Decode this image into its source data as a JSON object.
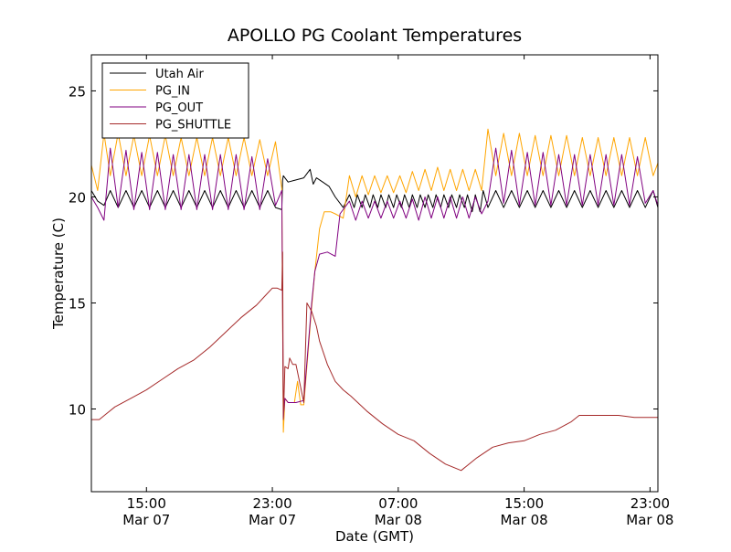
{
  "chart_data": {
    "type": "line",
    "title": "APOLLO PG Coolant Temperatures",
    "xlabel": "Date (GMT)",
    "ylabel": "Temperature (C)",
    "x_units": "hours since 2014-03-07 00:00 GMT",
    "xlim": [
      11.5,
      47.5
    ],
    "ylim": [
      6.1,
      26.7
    ],
    "yticks": [
      10,
      15,
      20,
      25
    ],
    "xticks": [
      {
        "x": 15,
        "line1": "15:00",
        "line2": "Mar 07"
      },
      {
        "x": 23,
        "line1": "23:00",
        "line2": "Mar 07"
      },
      {
        "x": 31,
        "line1": "07:00",
        "line2": "Mar 08"
      },
      {
        "x": 39,
        "line1": "15:00",
        "line2": "Mar 08"
      },
      {
        "x": 47,
        "line1": "23:00",
        "line2": "Mar 08"
      }
    ],
    "legend_position": "top-left",
    "series": [
      {
        "name": "Utah Air",
        "color": "#000000",
        "x": [
          11.5,
          11.9,
          12.3,
          12.7,
          13.2,
          13.7,
          14.2,
          14.7,
          15.2,
          15.7,
          16.2,
          16.7,
          17.2,
          17.7,
          18.2,
          18.7,
          19.2,
          19.7,
          20.2,
          20.7,
          21.2,
          21.7,
          22.2,
          22.7,
          23.2,
          23.6,
          23.65,
          23.7,
          24.0,
          24.5,
          25.0,
          25.4,
          25.6,
          25.8,
          26.2,
          26.6,
          27.0,
          27.5,
          27.9,
          28.2,
          28.4,
          28.7,
          28.9,
          29.2,
          29.4,
          29.7,
          29.9,
          30.2,
          30.4,
          30.7,
          30.9,
          31.2,
          31.4,
          31.7,
          31.9,
          32.2,
          32.4,
          32.7,
          32.9,
          33.2,
          33.4,
          33.7,
          33.9,
          34.2,
          34.4,
          34.7,
          34.9,
          35.2,
          35.4,
          35.7,
          35.9,
          36.2,
          36.4,
          36.7,
          37.2,
          37.7,
          38.2,
          38.7,
          39.2,
          39.7,
          40.2,
          40.7,
          41.2,
          41.7,
          42.2,
          42.7,
          43.2,
          43.7,
          44.2,
          44.7,
          45.2,
          45.7,
          46.2,
          46.7,
          47.2,
          47.5
        ],
        "y": [
          20.3,
          19.8,
          19.6,
          20.3,
          19.5,
          20.3,
          19.5,
          20.3,
          19.5,
          20.3,
          19.5,
          20.3,
          19.5,
          20.3,
          19.5,
          20.3,
          19.5,
          20.3,
          19.5,
          20.3,
          19.5,
          20.3,
          19.5,
          20.3,
          19.5,
          19.4,
          20.8,
          21.0,
          20.7,
          20.8,
          20.9,
          21.3,
          20.6,
          20.9,
          20.7,
          20.5,
          20.0,
          19.5,
          20.1,
          19.5,
          20.1,
          19.5,
          20.1,
          19.5,
          20.1,
          19.5,
          20.1,
          19.5,
          20.1,
          19.5,
          20.1,
          19.5,
          20.1,
          19.5,
          20.1,
          19.5,
          20.1,
          19.5,
          20.1,
          19.5,
          20.1,
          19.5,
          20.1,
          19.5,
          20.1,
          19.5,
          20.1,
          19.5,
          20.1,
          19.3,
          20.1,
          19.3,
          20.3,
          19.5,
          20.3,
          19.5,
          20.3,
          19.5,
          20.3,
          19.5,
          20.3,
          19.5,
          20.3,
          19.5,
          20.3,
          19.5,
          20.3,
          19.5,
          20.3,
          19.5,
          20.3,
          19.5,
          20.3,
          19.5,
          20.3,
          19.5
        ]
      },
      {
        "name": "PG_IN",
        "color": "#ffa500",
        "x": [
          11.5,
          11.9,
          12.3,
          12.7,
          13.2,
          13.7,
          14.2,
          14.7,
          15.2,
          15.7,
          16.2,
          16.7,
          17.2,
          17.7,
          18.2,
          18.7,
          19.2,
          19.7,
          20.2,
          20.7,
          21.2,
          21.7,
          22.2,
          22.7,
          23.2,
          23.6,
          23.7,
          23.8,
          24.0,
          24.4,
          24.6,
          24.8,
          25.0,
          25.5,
          25.7,
          26.0,
          26.3,
          26.7,
          27.0,
          27.5,
          27.9,
          28.3,
          28.7,
          29.1,
          29.5,
          29.9,
          30.3,
          30.7,
          31.1,
          31.5,
          31.9,
          32.3,
          32.7,
          33.1,
          33.5,
          33.9,
          34.3,
          34.7,
          35.1,
          35.5,
          35.9,
          36.3,
          36.7,
          37.2,
          37.7,
          38.2,
          38.7,
          39.2,
          39.7,
          40.2,
          40.7,
          41.2,
          41.7,
          42.2,
          42.7,
          43.2,
          43.7,
          44.2,
          44.7,
          45.2,
          45.7,
          46.2,
          46.7,
          47.2,
          47.5
        ],
        "y": [
          21.5,
          20.3,
          23.0,
          21.0,
          23.0,
          21.0,
          22.9,
          21.0,
          22.9,
          21.0,
          22.9,
          21.0,
          22.8,
          21.0,
          22.8,
          21.0,
          22.8,
          21.0,
          22.8,
          21.0,
          22.8,
          21.0,
          22.7,
          21.0,
          22.6,
          20.4,
          8.9,
          10.5,
          10.3,
          10.3,
          11.3,
          10.2,
          10.2,
          14.8,
          16.5,
          18.5,
          19.3,
          19.3,
          19.2,
          19.0,
          21.0,
          20.0,
          21.0,
          20.1,
          21.0,
          20.2,
          21.0,
          20.2,
          21.0,
          20.2,
          21.2,
          20.3,
          21.3,
          20.3,
          21.4,
          20.3,
          21.3,
          20.3,
          21.3,
          20.3,
          21.3,
          20.3,
          23.2,
          21.0,
          23.0,
          21.0,
          23.0,
          21.0,
          22.9,
          21.0,
          22.9,
          21.0,
          22.9,
          21.0,
          22.8,
          21.0,
          22.8,
          21.0,
          22.8,
          21.0,
          22.8,
          21.0,
          22.8,
          21.0,
          21.6
        ]
      },
      {
        "name": "PG_OUT",
        "color": "#800080",
        "x": [
          11.5,
          11.9,
          12.3,
          12.7,
          13.2,
          13.7,
          14.2,
          14.7,
          15.2,
          15.7,
          16.2,
          16.7,
          17.2,
          17.7,
          18.2,
          18.7,
          19.2,
          19.7,
          20.2,
          20.7,
          21.2,
          21.7,
          22.2,
          22.7,
          23.2,
          23.6,
          23.7,
          23.8,
          24.0,
          24.5,
          25.0,
          25.5,
          25.7,
          26.0,
          26.5,
          27.0,
          27.3,
          27.9,
          28.3,
          28.7,
          29.1,
          29.5,
          29.9,
          30.3,
          30.7,
          31.1,
          31.5,
          31.9,
          32.3,
          32.7,
          33.1,
          33.5,
          33.9,
          34.3,
          34.7,
          35.1,
          35.5,
          35.9,
          36.3,
          36.7,
          37.2,
          37.7,
          38.2,
          38.7,
          39.2,
          39.7,
          40.2,
          40.7,
          41.2,
          41.7,
          42.2,
          42.7,
          43.2,
          43.7,
          44.2,
          44.7,
          45.2,
          45.7,
          46.2,
          46.7,
          47.2,
          47.5
        ],
        "y": [
          20.0,
          19.5,
          18.9,
          22.3,
          19.5,
          22.2,
          19.4,
          22.1,
          19.4,
          22.1,
          19.4,
          22.0,
          19.4,
          22.0,
          19.4,
          22.0,
          19.4,
          22.0,
          19.4,
          22.0,
          19.4,
          21.9,
          19.4,
          21.8,
          19.6,
          20.3,
          9.6,
          10.5,
          10.3,
          10.3,
          10.4,
          15.0,
          16.5,
          17.3,
          17.4,
          17.2,
          19.2,
          19.8,
          18.9,
          19.8,
          19.0,
          19.8,
          19.0,
          19.8,
          19.0,
          19.8,
          19.0,
          19.9,
          18.9,
          20.0,
          19.0,
          20.0,
          19.0,
          20.0,
          19.0,
          20.0,
          19.0,
          20.0,
          19.2,
          19.8,
          22.3,
          19.7,
          22.2,
          19.6,
          22.1,
          19.6,
          22.1,
          19.6,
          22.0,
          19.6,
          22.0,
          19.6,
          22.0,
          19.6,
          22.0,
          19.6,
          22.0,
          19.6,
          21.9,
          19.7,
          20.3,
          19.6
        ]
      },
      {
        "name": "PG_SHUTTLE",
        "color": "#a52a2a",
        "x": [
          11.5,
          12.0,
          12.5,
          13.0,
          14.0,
          15.0,
          16.0,
          17.0,
          18.0,
          19.0,
          20.0,
          21.0,
          22.0,
          22.5,
          23.0,
          23.3,
          23.6,
          23.65,
          23.7,
          23.8,
          24.0,
          24.1,
          24.3,
          24.5,
          25.0,
          25.2,
          25.5,
          25.8,
          26.0,
          26.5,
          27.0,
          27.5,
          28.0,
          29.0,
          30.0,
          31.0,
          32.0,
          33.0,
          34.0,
          35.0,
          36.0,
          37.0,
          38.0,
          39.0,
          40.0,
          41.0,
          42.0,
          42.5,
          43.0,
          44.0,
          45.0,
          46.0,
          47.0,
          47.5
        ],
        "y": [
          9.5,
          9.5,
          9.8,
          10.1,
          10.5,
          10.9,
          11.4,
          11.9,
          12.3,
          12.9,
          13.6,
          14.3,
          14.9,
          15.3,
          15.7,
          15.7,
          15.6,
          17.4,
          9.5,
          12.0,
          11.9,
          12.4,
          12.1,
          12.1,
          10.3,
          15.0,
          14.6,
          13.9,
          13.2,
          12.1,
          11.3,
          10.9,
          10.6,
          9.9,
          9.3,
          8.8,
          8.5,
          7.9,
          7.4,
          7.1,
          7.7,
          8.2,
          8.4,
          8.5,
          8.8,
          9.0,
          9.4,
          9.7,
          9.7,
          9.7,
          9.7,
          9.6,
          9.6,
          9.6
        ]
      }
    ]
  }
}
